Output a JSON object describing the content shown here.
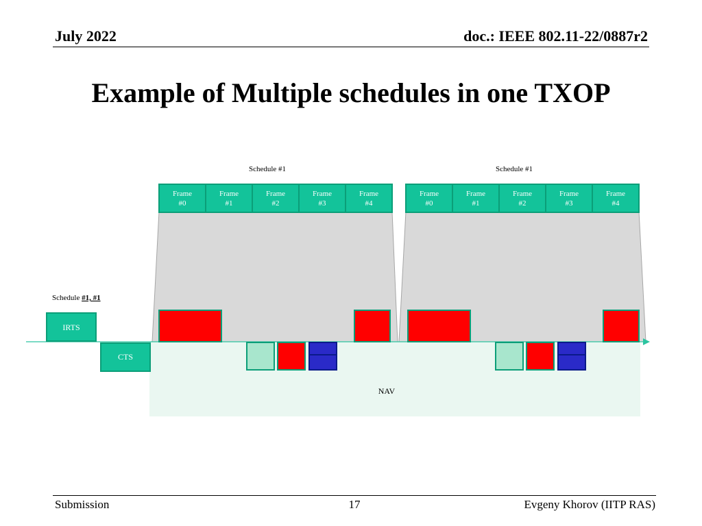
{
  "header": {
    "date": "July 2022",
    "doc": "doc.: IEEE 802.11-22/0887r2"
  },
  "title": "Example of Multiple schedules in one TXOP",
  "diagram": {
    "schedule_groups": [
      {
        "label": "Schedule #1",
        "frames": [
          [
            "Frame",
            "#0"
          ],
          [
            "Frame",
            "#1"
          ],
          [
            "Frame",
            "#2"
          ],
          [
            "Frame",
            "#3"
          ],
          [
            "Frame",
            "#4"
          ]
        ]
      },
      {
        "label": "Schedule #1",
        "frames": [
          [
            "Frame",
            "#0"
          ],
          [
            "Frame",
            "#1"
          ],
          [
            "Frame",
            "#2"
          ],
          [
            "Frame",
            "#3"
          ],
          [
            "Frame",
            "#4"
          ]
        ]
      }
    ],
    "schedule_text": "Schedule ",
    "schedule_bold": "#1, #1",
    "irts_label": "IRTS",
    "cts_label": "CTS",
    "nav_label": "NAV",
    "colors": {
      "teal": "#13c39a",
      "teal_border": "#0b9e78",
      "red": "#ff0000",
      "light_green": "#a8e6cd",
      "blue": "#2a2ac8",
      "blue_border": "#0a1a8a",
      "gray_fill": "#d9d9d9",
      "nav_fill": "#eaf7f1",
      "arrow": "#2bc4a0"
    }
  },
  "footer": {
    "left": "Submission",
    "page": "17",
    "right": "Evgeny Khorov (IITP RAS)"
  }
}
